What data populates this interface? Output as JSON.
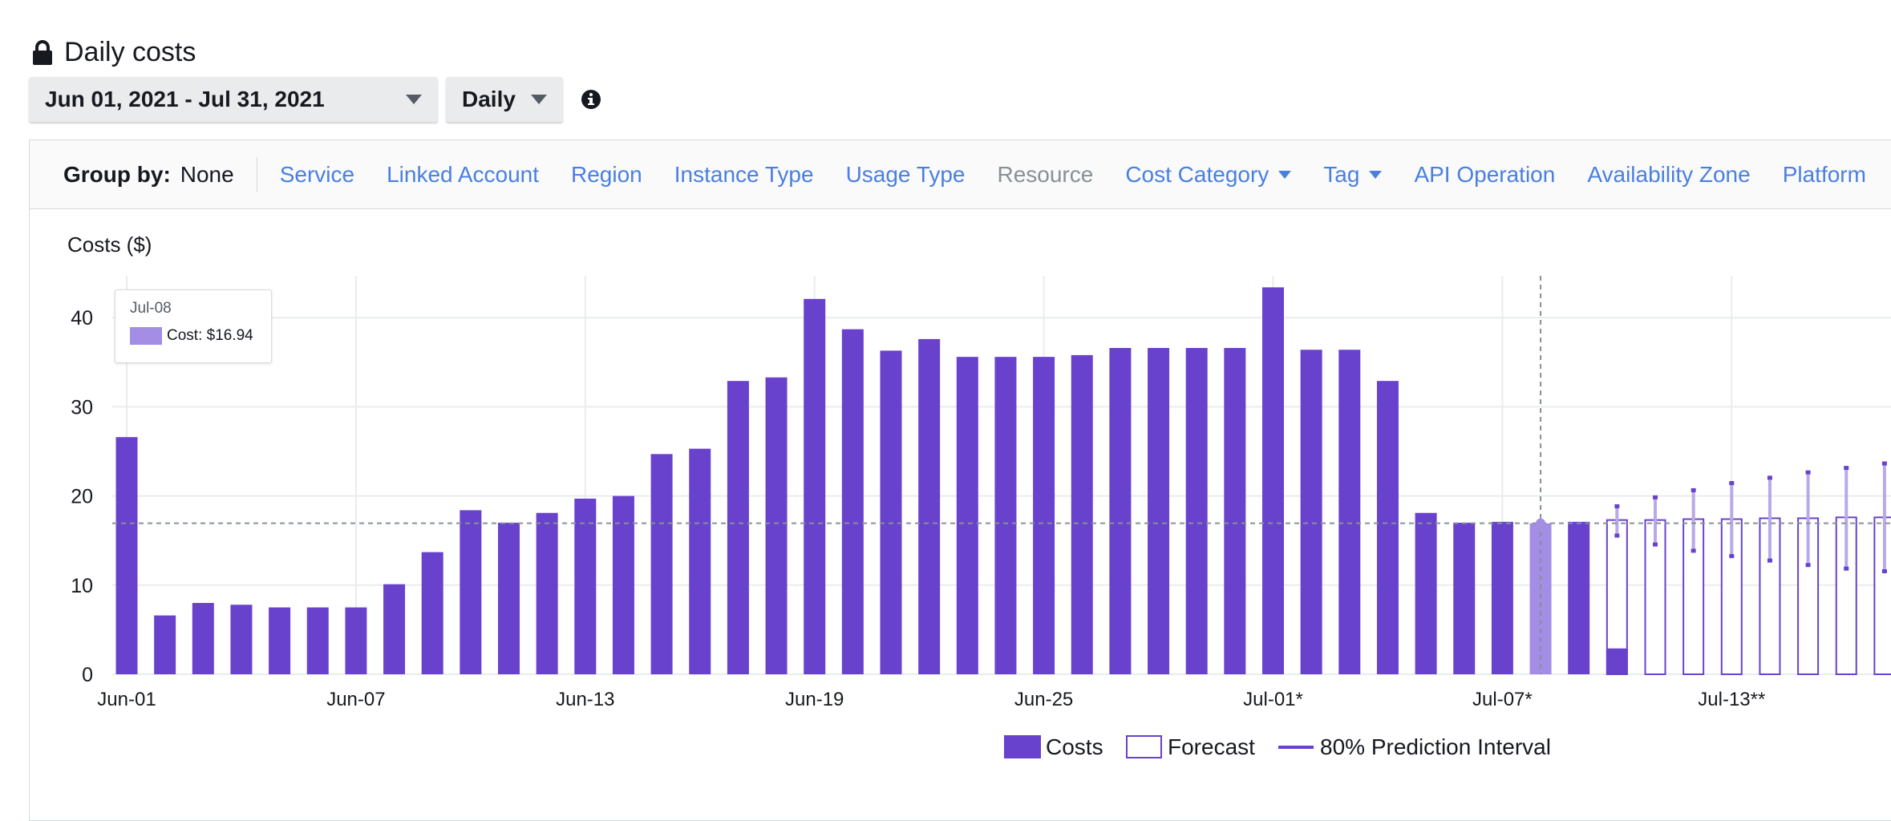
{
  "page": {
    "title": "Daily costs",
    "date_range": "Jun 01, 2021 - Jul 31, 2021",
    "granularity": "Daily"
  },
  "group_by": {
    "label": "Group by:",
    "value": "None",
    "options": [
      {
        "label": "Service",
        "enabled": true,
        "dropdown": false
      },
      {
        "label": "Linked Account",
        "enabled": true,
        "dropdown": false
      },
      {
        "label": "Region",
        "enabled": true,
        "dropdown": false
      },
      {
        "label": "Instance Type",
        "enabled": true,
        "dropdown": false
      },
      {
        "label": "Usage Type",
        "enabled": true,
        "dropdown": false
      },
      {
        "label": "Resource",
        "enabled": false,
        "dropdown": false
      },
      {
        "label": "Cost Category",
        "enabled": true,
        "dropdown": true
      },
      {
        "label": "Tag",
        "enabled": true,
        "dropdown": true
      },
      {
        "label": "API Operation",
        "enabled": true,
        "dropdown": false
      },
      {
        "label": "Availability Zone",
        "enabled": true,
        "dropdown": false
      },
      {
        "label": "Platform",
        "enabled": true,
        "dropdown": false
      }
    ]
  },
  "tooltip": {
    "date": "Jul-08",
    "text": "Cost: $16.94"
  },
  "colors": {
    "cost": "#6842cc",
    "highlight": "#a38de5",
    "forecast_border": "#6842cc",
    "interval": "#b9a8ea",
    "link": "#4a7fe0"
  },
  "chart_data": {
    "type": "bar",
    "title": "",
    "ylabel": "Costs ($)",
    "ylim": [
      0,
      45
    ],
    "yticks": [
      0,
      10,
      20,
      30,
      40
    ],
    "tick_labels": [
      "Jun-01",
      "Jun-07",
      "Jun-13",
      "Jun-19",
      "Jun-25",
      "Jul-01*",
      "Jul-07*",
      "Jul-13**"
    ],
    "tick_dates": [
      "Jun-01",
      "Jun-07",
      "Jun-13",
      "Jun-19",
      "Jun-25",
      "Jul-01",
      "Jul-07",
      "Jul-13"
    ],
    "highlighted_date": "Jul-08",
    "reference_value": 16.94,
    "costs": [
      {
        "date": "Jun-01",
        "value": 26.6
      },
      {
        "date": "Jun-02",
        "value": 6.6
      },
      {
        "date": "Jun-03",
        "value": 8.0
      },
      {
        "date": "Jun-04",
        "value": 7.8
      },
      {
        "date": "Jun-05",
        "value": 7.5
      },
      {
        "date": "Jun-06",
        "value": 7.5
      },
      {
        "date": "Jun-07",
        "value": 7.5
      },
      {
        "date": "Jun-08",
        "value": 10.1
      },
      {
        "date": "Jun-09",
        "value": 13.7
      },
      {
        "date": "Jun-10",
        "value": 18.4
      },
      {
        "date": "Jun-11",
        "value": 17.0
      },
      {
        "date": "Jun-12",
        "value": 18.1
      },
      {
        "date": "Jun-13",
        "value": 19.7
      },
      {
        "date": "Jun-14",
        "value": 20.0
      },
      {
        "date": "Jun-15",
        "value": 24.7
      },
      {
        "date": "Jun-16",
        "value": 25.3
      },
      {
        "date": "Jun-17",
        "value": 32.9
      },
      {
        "date": "Jun-18",
        "value": 33.3
      },
      {
        "date": "Jun-19",
        "value": 42.1
      },
      {
        "date": "Jun-20",
        "value": 38.7
      },
      {
        "date": "Jun-21",
        "value": 36.3
      },
      {
        "date": "Jun-22",
        "value": 37.6
      },
      {
        "date": "Jun-23",
        "value": 35.6
      },
      {
        "date": "Jun-24",
        "value": 35.6
      },
      {
        "date": "Jun-25",
        "value": 35.6
      },
      {
        "date": "Jun-26",
        "value": 35.8
      },
      {
        "date": "Jun-27",
        "value": 36.6
      },
      {
        "date": "Jun-28",
        "value": 36.6
      },
      {
        "date": "Jun-29",
        "value": 36.6
      },
      {
        "date": "Jun-30",
        "value": 36.6
      },
      {
        "date": "Jul-01",
        "value": 43.4
      },
      {
        "date": "Jul-02",
        "value": 36.4
      },
      {
        "date": "Jul-03",
        "value": 36.4
      },
      {
        "date": "Jul-04",
        "value": 32.9
      },
      {
        "date": "Jul-05",
        "value": 18.1
      },
      {
        "date": "Jul-06",
        "value": 17.0
      },
      {
        "date": "Jul-07",
        "value": 17.1
      },
      {
        "date": "Jul-08",
        "value": 16.94
      },
      {
        "date": "Jul-09",
        "value": 17.1
      },
      {
        "date": "Jul-10",
        "value": 2.9
      }
    ],
    "forecast": [
      {
        "date": "Jul-10",
        "value": 17.3,
        "low": 15.6,
        "high": 18.8
      },
      {
        "date": "Jul-11",
        "value": 17.3,
        "low": 14.6,
        "high": 19.8
      },
      {
        "date": "Jul-12",
        "value": 17.4,
        "low": 13.9,
        "high": 20.6
      },
      {
        "date": "Jul-13",
        "value": 17.4,
        "low": 13.3,
        "high": 21.4
      },
      {
        "date": "Jul-14",
        "value": 17.5,
        "low": 12.8,
        "high": 22.0
      },
      {
        "date": "Jul-15",
        "value": 17.5,
        "low": 12.3,
        "high": 22.6
      },
      {
        "date": "Jul-16",
        "value": 17.6,
        "low": 11.9,
        "high": 23.1
      },
      {
        "date": "Jul-17",
        "value": 17.6,
        "low": 11.6,
        "high": 23.6
      }
    ],
    "legend": [
      "Costs",
      "Forecast",
      "80% Prediction Interval"
    ],
    "grid": true
  }
}
